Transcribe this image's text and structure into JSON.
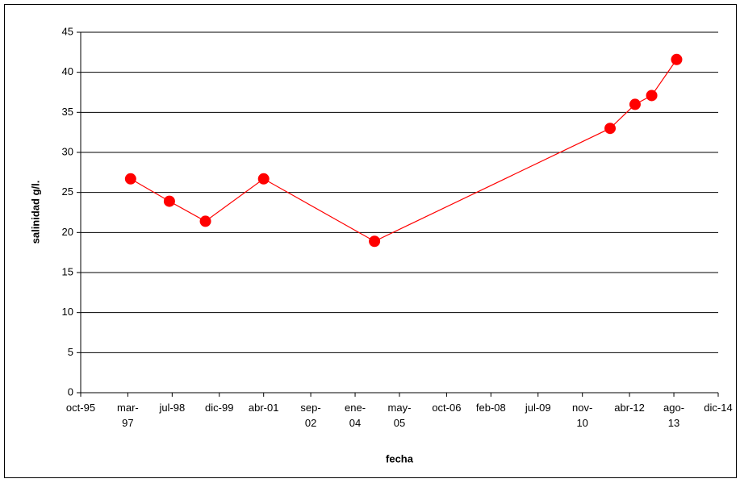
{
  "chart_data": {
    "type": "line",
    "x_label": "fecha",
    "y_label": "salinidad g/l.",
    "x": [
      "1997-04",
      "1998-06",
      "1999-07",
      "2001-04",
      "2004-08",
      "2011-09",
      "2012-06",
      "2012-12",
      "2013-09"
    ],
    "series": [
      {
        "name": "salinidad",
        "color": "#ff0000",
        "values": [
          26.7,
          23.9,
          21.4,
          26.7,
          18.9,
          33.0,
          36.0,
          37.1,
          41.6
        ]
      }
    ],
    "xlim": [
      "1995-10",
      "2014-12"
    ],
    "xticks": [
      {
        "value": "1995-10",
        "label": "oct-95"
      },
      {
        "value": "1997-03",
        "label": "mar-97"
      },
      {
        "value": "1998-07",
        "label": "jul-98"
      },
      {
        "value": "1999-12",
        "label": "dic-99"
      },
      {
        "value": "2001-04",
        "label": "abr-01"
      },
      {
        "value": "2002-09",
        "label": "sep-02"
      },
      {
        "value": "2004-01",
        "label": "ene-04"
      },
      {
        "value": "2005-05",
        "label": "may-05"
      },
      {
        "value": "2006-10",
        "label": "oct-06"
      },
      {
        "value": "2008-02",
        "label": "feb-08"
      },
      {
        "value": "2009-07",
        "label": "jul-09"
      },
      {
        "value": "2010-11",
        "label": "nov-10"
      },
      {
        "value": "2012-04",
        "label": "abr-12"
      },
      {
        "value": "2013-08",
        "label": "ago-13"
      },
      {
        "value": "2014-12",
        "label": "dic-14"
      }
    ],
    "ylim": [
      0,
      45
    ],
    "yticks": [
      0,
      5,
      10,
      15,
      20,
      25,
      30,
      35,
      40,
      45
    ],
    "grid": true
  }
}
